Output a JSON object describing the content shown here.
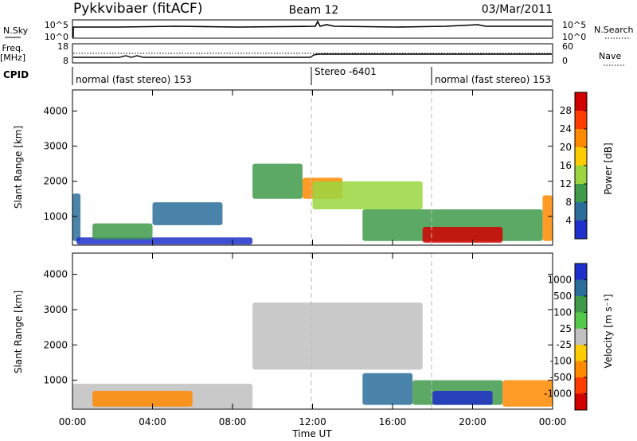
{
  "header": {
    "station": "Pykkvibaer (fitACF)",
    "beam": "Beam 12",
    "date": "03/Mar/2011"
  },
  "strip_panels": {
    "nsky": {
      "label": "N.Sky",
      "left_ticks": [
        "10^5",
        "10^0"
      ],
      "right_ticks": [
        "10^5",
        "10^0"
      ],
      "right_label": "N.Search"
    },
    "freq": {
      "label_lines": [
        "Freq.",
        "[MHz]"
      ],
      "left_ticks": [
        "18",
        "8"
      ],
      "right_ticks": [
        "60",
        "0"
      ],
      "right_label": "Nave"
    },
    "cpid": {
      "label": "CPID",
      "segments": [
        {
          "start": "00:00",
          "end": "12:00",
          "text": "normal (fast stereo) 153"
        },
        {
          "start": "12:00",
          "end": "18:00",
          "text": "Stereo -6401"
        },
        {
          "start": "18:00",
          "end": "24:00",
          "text": "normal (fast stereo) 153"
        }
      ]
    }
  },
  "chart_data": [
    {
      "type": "heatmap",
      "name": "power",
      "ylabel": "Slant Range [km]",
      "xlabel": "",
      "ylim": [
        180,
        4600
      ],
      "yticks": [
        "1000",
        "2000",
        "3000",
        "4000"
      ],
      "colorbar": {
        "label": "Power [dB]",
        "ticks": [
          "28",
          "24",
          "20",
          "16",
          "12",
          "8",
          "4"
        ],
        "colors": [
          "#d10000",
          "#ff3c00",
          "#ff8a00",
          "#ffcc00",
          "#9bd640",
          "#3f9a4a",
          "#2c6e9b",
          "#1f2fc9"
        ]
      },
      "regions": [
        {
          "t": [
            0.0,
            0.4
          ],
          "r": [
            300,
            1650
          ],
          "color": "#2c6e9b"
        },
        {
          "t": [
            0.2,
            9.0
          ],
          "r": [
            200,
            400
          ],
          "color": "#1f2fc9"
        },
        {
          "t": [
            1.0,
            4.0
          ],
          "r": [
            350,
            800
          ],
          "color": "#3f9a4a"
        },
        {
          "t": [
            4.0,
            7.5
          ],
          "r": [
            750,
            1400
          ],
          "color": "#2c6e9b"
        },
        {
          "t": [
            9.0,
            11.5
          ],
          "r": [
            1500,
            2500
          ],
          "color": "#3f9a4a"
        },
        {
          "t": [
            11.5,
            13.5
          ],
          "r": [
            1500,
            2100
          ],
          "color": "#ff8a00"
        },
        {
          "t": [
            12.0,
            17.5
          ],
          "r": [
            1200,
            2000
          ],
          "color": "#9bd640"
        },
        {
          "t": [
            14.5,
            23.5
          ],
          "r": [
            300,
            1200
          ],
          "color": "#3f9a4a"
        },
        {
          "t": [
            17.5,
            21.5
          ],
          "r": [
            250,
            700
          ],
          "color": "#d10000"
        },
        {
          "t": [
            23.5,
            24.0
          ],
          "r": [
            300,
            1600
          ],
          "color": "#ff8a00"
        }
      ]
    },
    {
      "type": "heatmap",
      "name": "velocity",
      "ylabel": "Slant Range [km]",
      "xlabel": "Time UT",
      "ylim": [
        180,
        4600
      ],
      "yticks": [
        "1000",
        "2000",
        "3000",
        "4000"
      ],
      "xticks": [
        "00:00",
        "04:00",
        "08:00",
        "12:00",
        "16:00",
        "20:00",
        "00:00"
      ],
      "colorbar": {
        "label": "Velocity [m s⁻¹]",
        "ticks": [
          "1000",
          "500",
          "100",
          "25",
          "-25",
          "-100",
          "-500",
          "-1000"
        ],
        "colors": [
          "#1f2fc9",
          "#2c6e9b",
          "#3f9a4a",
          "#54c94a",
          "#c0c0c0",
          "#ffcc00",
          "#ff8a00",
          "#ff3c00",
          "#d10000"
        ]
      },
      "regions": [
        {
          "t": [
            0.0,
            9.0
          ],
          "r": [
            200,
            900
          ],
          "color": "#c0c0c0"
        },
        {
          "t": [
            1.0,
            6.0
          ],
          "r": [
            250,
            700
          ],
          "color": "#ff8a00"
        },
        {
          "t": [
            9.0,
            17.5
          ],
          "r": [
            1300,
            3200
          ],
          "color": "#c0c0c0"
        },
        {
          "t": [
            14.5,
            17.0
          ],
          "r": [
            300,
            1200
          ],
          "color": "#2c6e9b"
        },
        {
          "t": [
            17.0,
            21.5
          ],
          "r": [
            300,
            1000
          ],
          "color": "#3f9a4a"
        },
        {
          "t": [
            18.0,
            21.0
          ],
          "r": [
            300,
            700
          ],
          "color": "#1f2fc9"
        },
        {
          "t": [
            21.5,
            24.0
          ],
          "r": [
            250,
            1000
          ],
          "color": "#ff8a00"
        }
      ]
    }
  ]
}
